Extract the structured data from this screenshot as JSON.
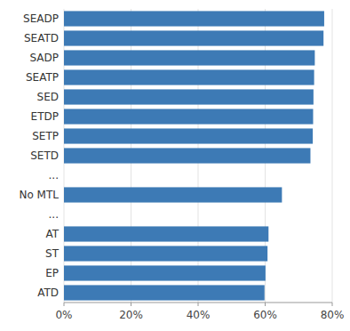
{
  "chart_data": {
    "type": "bar",
    "orientation": "horizontal",
    "categories": [
      "SEADP",
      "SEATD",
      "SADP",
      "SEATP",
      "SED",
      "ETDP",
      "SETP",
      "SETD",
      "...",
      "No MTL",
      "...",
      "AT",
      "ST",
      "EP",
      "ATD"
    ],
    "values": [
      0.776,
      0.774,
      0.748,
      0.746,
      0.744,
      0.743,
      0.742,
      0.735,
      null,
      0.65,
      null,
      0.61,
      0.607,
      0.601,
      0.598
    ],
    "color": "#3d7ab5",
    "xlim": [
      0,
      0.8
    ],
    "xticks": [
      {
        "value": 0,
        "label": "0%"
      },
      {
        "value": 0.2,
        "label": "20%"
      },
      {
        "value": 0.4,
        "label": "40%"
      },
      {
        "value": 0.6,
        "label": "60%"
      },
      {
        "value": 0.8,
        "label": "80%"
      }
    ],
    "grid": true
  }
}
